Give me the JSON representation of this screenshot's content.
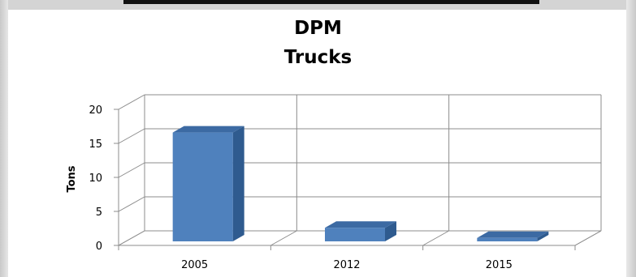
{
  "chart_data": {
    "type": "bar",
    "title": [
      "DPM",
      "Trucks"
    ],
    "ylabel": "Tons",
    "xlabel": "",
    "categories": [
      "2005",
      "2012",
      "2015"
    ],
    "values": [
      16.0,
      2.0,
      0.5
    ],
    "ylim": [
      0,
      20
    ],
    "yticks": [
      "0",
      "5",
      "10",
      "15",
      "20"
    ],
    "grid": true,
    "legend": "none",
    "style": "3d-column",
    "bar_color": "#4f81bd",
    "bar_top_color": "#3c6aa3",
    "bar_side_color": "#2f5b8f"
  }
}
